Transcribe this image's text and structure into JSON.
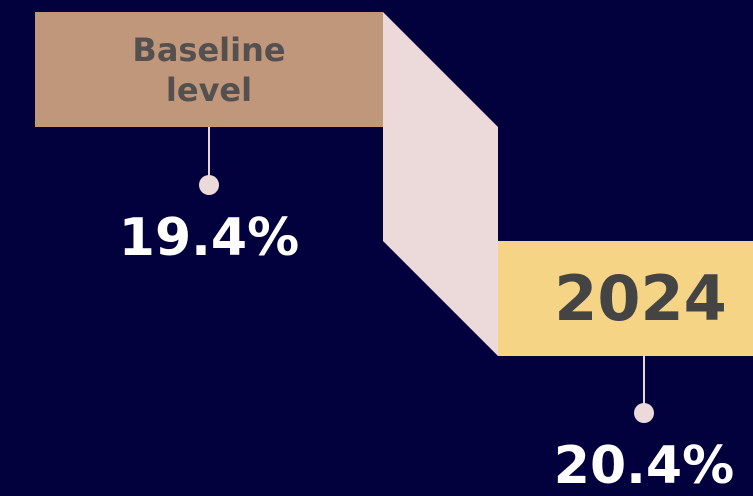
{
  "steps": [
    {
      "label": "Baseline level",
      "value": "19.4%"
    },
    {
      "label": "2024",
      "value": "20.4%"
    }
  ]
}
